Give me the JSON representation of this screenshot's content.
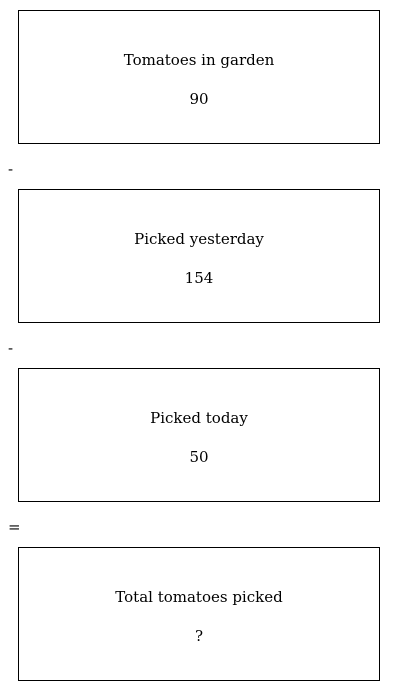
{
  "cards": [
    {
      "label": "Tomatoes in garden",
      "value": "90"
    },
    {
      "label": "Picked yesterday",
      "value": "154"
    },
    {
      "label": "Picked today",
      "value": "50"
    },
    {
      "label": "Total tomatoes picked",
      "value": "?"
    }
  ],
  "operators": [
    "-",
    "-",
    "="
  ]
}
